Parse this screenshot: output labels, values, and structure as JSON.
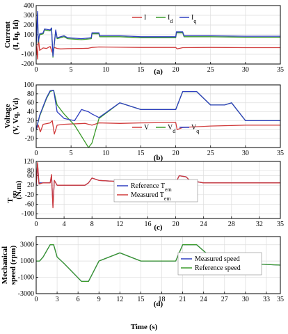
{
  "xlabel": "Time (s)",
  "chart_data": [
    {
      "type": "line",
      "caption": "(a)",
      "ylabel": "Current",
      "ylabel2": "(I, Iq, Id)",
      "xlim": [
        0,
        35
      ],
      "ylim": [
        -200,
        400
      ],
      "xticks": [
        0,
        5,
        10,
        15,
        20,
        25,
        30,
        35
      ],
      "yticks": [
        -200,
        -100,
        0,
        100,
        200,
        300,
        400
      ],
      "legend": {
        "placement": "top-center",
        "inline": true
      },
      "series": [
        {
          "name": "I",
          "color": "#d03a3a",
          "x": [
            0,
            0.2,
            0.3,
            0.5,
            1.0,
            1.5,
            2.0,
            2.3,
            2.6,
            3.0,
            3.5,
            4.5,
            6.5,
            7.5,
            8.0,
            9.0,
            12,
            15,
            20,
            20.2,
            21,
            25,
            30,
            35
          ],
          "y": [
            0,
            -150,
            80,
            -60,
            -35,
            -40,
            -20,
            -80,
            -30,
            -40,
            -45,
            -42,
            -40,
            -38,
            -30,
            -25,
            -28,
            -30,
            -30,
            -45,
            -32,
            -30,
            -32,
            -32
          ]
        },
        {
          "name": "I",
          "name_sub": "d",
          "color": "#3a9a2a",
          "x": [
            0,
            0.2,
            0.3,
            0.5,
            1.0,
            1.2,
            2.0,
            2.2,
            2.4,
            2.8,
            3.0,
            4.0,
            4.5,
            6.5,
            7.9,
            8.0,
            9.0,
            9.1,
            12,
            15,
            20,
            20.1,
            21,
            21.2,
            25,
            30,
            35
          ],
          "y": [
            0,
            320,
            20,
            100,
            110,
            150,
            140,
            170,
            -130,
            140,
            60,
            80,
            60,
            50,
            60,
            110,
            110,
            80,
            80,
            70,
            70,
            120,
            120,
            80,
            80,
            75,
            75
          ]
        },
        {
          "name": "I",
          "name_sub": "q",
          "color": "#2f3fc0",
          "x": [
            0,
            0.2,
            0.3,
            0.5,
            1.0,
            1.2,
            2.0,
            2.2,
            2.4,
            2.8,
            3.0,
            4.0,
            4.5,
            6.5,
            7.9,
            8.0,
            9.0,
            9.1,
            12,
            15,
            20,
            20.1,
            21,
            21.2,
            25,
            30,
            35
          ],
          "y": [
            0,
            340,
            30,
            110,
            120,
            160,
            150,
            170,
            -120,
            150,
            70,
            90,
            70,
            60,
            70,
            120,
            120,
            90,
            90,
            80,
            80,
            130,
            130,
            90,
            90,
            85,
            85
          ]
        }
      ]
    },
    {
      "type": "line",
      "caption": "(b)",
      "ylabel": "Voltage",
      "ylabel2": "(V, Vq, Vd)",
      "xlim": [
        0,
        35
      ],
      "ylim": [
        -40,
        100
      ],
      "xticks": [
        0,
        5,
        10,
        15,
        20,
        25,
        30,
        35
      ],
      "yticks": [
        -20,
        0,
        20,
        40,
        60,
        80,
        100
      ],
      "legend": {
        "placement": "bottom-center",
        "inline": true
      },
      "series": [
        {
          "name": "V",
          "color": "#d03a3a",
          "x": [
            0,
            0.3,
            0.6,
            1.0,
            2.0,
            2.3,
            2.6,
            3.0,
            4.0,
            7.0,
            8.0,
            9.0,
            12,
            15,
            20,
            20.2,
            21,
            25,
            30,
            35
          ],
          "y": [
            0,
            10,
            -5,
            12,
            15,
            20,
            -10,
            10,
            12,
            14,
            10,
            15,
            14,
            15,
            16,
            0,
            5,
            8,
            10,
            10
          ]
        },
        {
          "name": "V",
          "name_sub": "d",
          "color": "#3a9a2a",
          "x": [
            0,
            0.5,
            1.0,
            1.5,
            2.0,
            2.5,
            3.0,
            4.0,
            5.5,
            7.5,
            8.0,
            9.0,
            12,
            15,
            20,
            21,
            23,
            25,
            27,
            28,
            30,
            35
          ],
          "y": [
            0,
            30,
            50,
            70,
            85,
            88,
            55,
            35,
            10,
            -40,
            -30,
            25,
            60,
            45,
            45,
            85,
            85,
            55,
            55,
            60,
            20,
            20
          ]
        },
        {
          "name": "V",
          "name_sub": "q",
          "color": "#2f3fc0",
          "x": [
            0,
            0.5,
            1.0,
            1.5,
            2.0,
            2.5,
            3.0,
            4.0,
            5.5,
            6.5,
            7.5,
            8.0,
            9.0,
            12,
            15,
            20,
            21,
            23,
            25,
            27,
            28,
            30,
            35
          ],
          "y": [
            0,
            32,
            52,
            72,
            87,
            88,
            40,
            25,
            20,
            45,
            40,
            35,
            27,
            60,
            45,
            45,
            85,
            85,
            55,
            55,
            60,
            20,
            20
          ]
        }
      ]
    },
    {
      "type": "line",
      "caption": "(c)",
      "ylabel": "T",
      "ylabel_sub": "em",
      "ylabel2": "(N.m)",
      "xlim": [
        0,
        35
      ],
      "ylim": [
        -120,
        120
      ],
      "xticks": [
        0,
        4,
        8,
        12,
        16,
        20,
        24,
        28,
        32,
        35
      ],
      "yticks": [
        -100,
        -60,
        -20,
        20,
        60,
        80,
        120
      ],
      "legend": {
        "placement": "center"
      },
      "series": [
        {
          "name": "Reference T",
          "name_sub": "em",
          "color": "#2f3fc0",
          "x": [
            0,
            0.2,
            0.4,
            1.0,
            2.0,
            2.2,
            2.4,
            2.6,
            3.0,
            4.0,
            7.0,
            7.5,
            8.0,
            9.0,
            12,
            15,
            20,
            20.5,
            21.5,
            22,
            24,
            35
          ],
          "y": [
            20,
            110,
            30,
            30,
            30,
            60,
            -70,
            40,
            20,
            20,
            20,
            30,
            50,
            40,
            35,
            30,
            30,
            60,
            55,
            40,
            30,
            30
          ]
        },
        {
          "name": "Measured T",
          "name_sub": "em",
          "color": "#d03a3a",
          "x": [
            0,
            0.2,
            0.4,
            1.0,
            2.0,
            2.2,
            2.4,
            2.6,
            3.0,
            4.0,
            7.0,
            7.5,
            8.0,
            9.0,
            12,
            15,
            20,
            20.5,
            21.5,
            22,
            24,
            35
          ],
          "y": [
            20,
            115,
            25,
            30,
            30,
            65,
            -75,
            40,
            20,
            20,
            20,
            30,
            50,
            40,
            35,
            30,
            30,
            60,
            55,
            40,
            30,
            30
          ]
        }
      ]
    },
    {
      "type": "line",
      "caption": "(d)",
      "ylabel": "Mechanical",
      "ylabel2": "speed (rpm)",
      "xlim": [
        0,
        35
      ],
      "ylim": [
        -3000,
        4000
      ],
      "xticks": [
        0,
        3,
        6,
        9,
        12,
        15,
        18,
        21,
        24,
        27,
        30,
        33,
        35
      ],
      "yticks": [
        -3000,
        -1000,
        1000,
        3000
      ],
      "legend": {
        "placement": "right"
      },
      "series": [
        {
          "name": "Measured speed",
          "color": "#2f3fc0",
          "x": [
            0,
            0.5,
            1.0,
            2.0,
            2.5,
            3.0,
            4.0,
            6.5,
            7.5,
            9.0,
            12,
            15,
            20,
            21,
            23,
            25,
            28,
            30,
            35
          ],
          "y": [
            1000,
            1000,
            1500,
            3000,
            3000,
            1500,
            700,
            -1500,
            -1500,
            1000,
            2000,
            1000,
            1000,
            3000,
            3000,
            1500,
            1800,
            700,
            500
          ]
        },
        {
          "name": "Reference speed",
          "color": "#3a9a2a",
          "x": [
            0,
            0.5,
            1.0,
            2.0,
            2.5,
            3.0,
            4.0,
            6.5,
            7.5,
            9.0,
            12,
            15,
            20,
            21,
            23,
            25,
            28,
            30,
            35
          ],
          "y": [
            1000,
            1000,
            1500,
            3000,
            3000,
            1500,
            700,
            -1500,
            -1500,
            1000,
            2000,
            1000,
            1000,
            3000,
            3000,
            1500,
            1800,
            700,
            500
          ]
        }
      ]
    }
  ]
}
